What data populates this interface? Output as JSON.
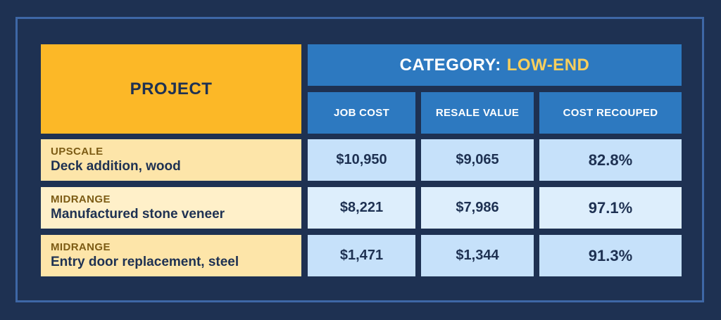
{
  "table": {
    "project_header": "PROJECT",
    "category_label": "CATEGORY:",
    "category_value": "LOW-END",
    "columns": [
      "JOB COST",
      "RESALE VALUE",
      "COST RECOUPED"
    ],
    "rows": [
      {
        "tier": "UPSCALE",
        "project": "Deck addition, wood",
        "job_cost": "$10,950",
        "resale_value": "$9,065",
        "cost_recouped": "82.8%"
      },
      {
        "tier": "MIDRANGE",
        "project": "Manufactured stone veneer",
        "job_cost": "$8,221",
        "resale_value": "$7,986",
        "cost_recouped": "97.1%"
      },
      {
        "tier": "MIDRANGE",
        "project": "Entry door replacement, steel",
        "job_cost": "$1,471",
        "resale_value": "$1,344",
        "cost_recouped": "91.3%"
      }
    ]
  },
  "chart_data": {
    "type": "table",
    "title": "",
    "columns": [
      "PROJECT",
      "JOB COST",
      "RESALE VALUE",
      "COST RECOUPED"
    ],
    "rows": [
      [
        "UPSCALE Deck addition, wood",
        10950,
        9065,
        82.8
      ],
      [
        "MIDRANGE Manufactured stone veneer",
        8221,
        7986,
        97.1
      ],
      [
        "MIDRANGE Entry door replacement, steel",
        1471,
        1344,
        91.3
      ]
    ]
  },
  "colors": {
    "background": "#1e3152",
    "frame": "#3e67a6",
    "project_header": "#fcb827",
    "category_header": "#2d79c0",
    "category_value": "#f8cf5c",
    "row_tier_text": "#7c5b14"
  }
}
